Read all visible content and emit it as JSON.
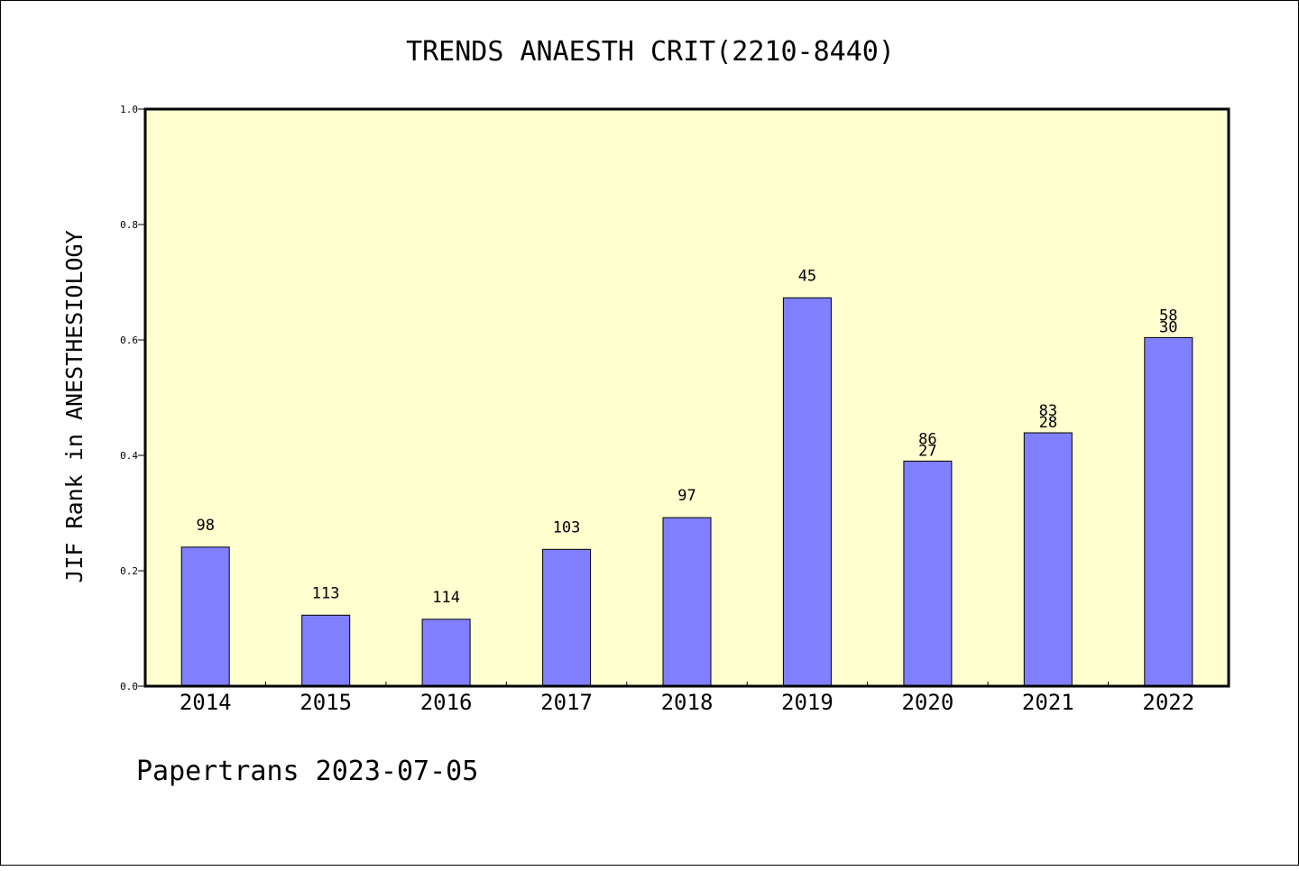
{
  "chart_data": {
    "type": "bar",
    "title": "TRENDS ANAESTH CRIT(2210-8440)",
    "xlabel": "",
    "ylabel": "JIF Rank in ANESTHESIOLOGY",
    "ylim": [
      0,
      1.0
    ],
    "yticks": [
      "0.0",
      "0.2",
      "0.4",
      "0.6",
      "0.8",
      "1.0"
    ],
    "grid": false,
    "legend": "none",
    "colors": {
      "plot_background": "#ffffd0",
      "bar_fill": "#8080ff",
      "bar_stroke": "#000000"
    },
    "categories": [
      "2014",
      "2015",
      "2016",
      "2017",
      "2018",
      "2019",
      "2020",
      "2021",
      "2022"
    ],
    "values": [
      0.241,
      0.123,
      0.116,
      0.237,
      0.292,
      0.673,
      0.39,
      0.439,
      0.604
    ],
    "labels": [
      [
        "98"
      ],
      [
        "113"
      ],
      [
        "114"
      ],
      [
        "103"
      ],
      [
        "97"
      ],
      [
        "45"
      ],
      [
        "86",
        "27"
      ],
      [
        "83",
        "28"
      ],
      [
        "58",
        "30"
      ]
    ]
  },
  "footer": "Papertrans 2023-07-05"
}
